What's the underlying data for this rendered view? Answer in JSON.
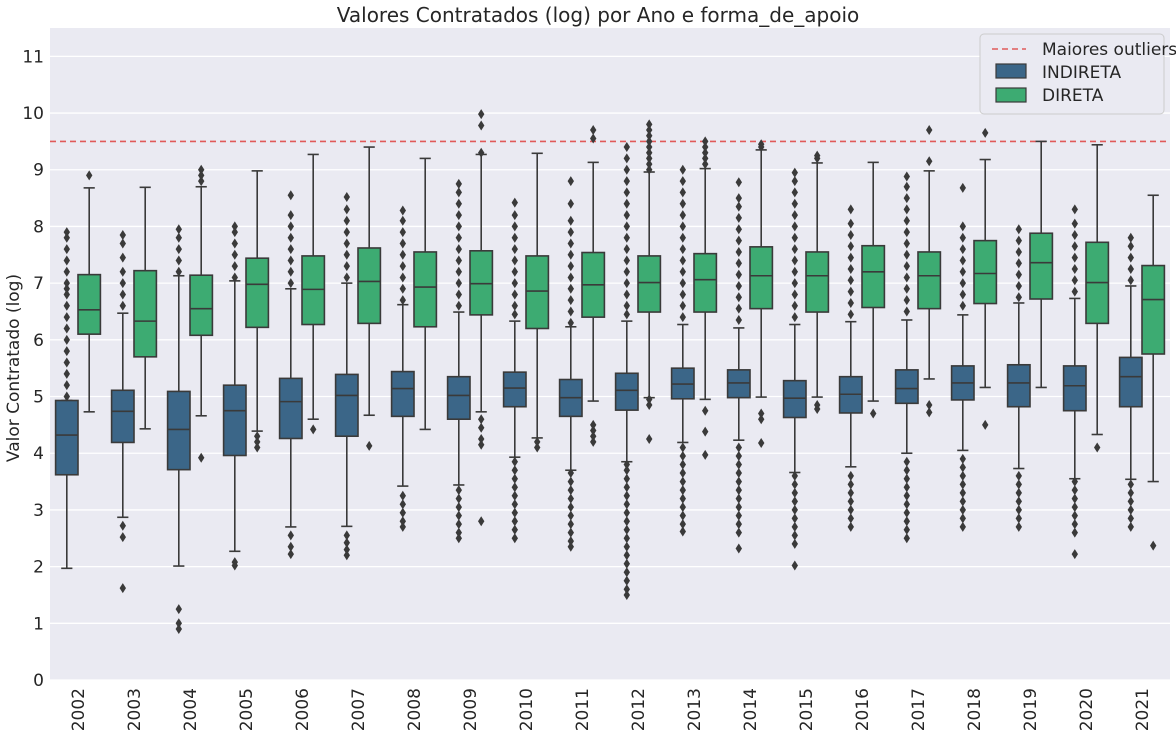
{
  "chart_data": {
    "type": "box",
    "title": "Valores Contratados (log) por Ano e forma_de_apoio",
    "xlabel": "",
    "ylabel": "Valor Contratado (log)",
    "ylim": [
      0,
      11.5
    ],
    "yticks": [
      0,
      1,
      2,
      3,
      4,
      5,
      6,
      7,
      8,
      9,
      10,
      11
    ],
    "grid": true,
    "legend_position": "top-right",
    "reference_line": {
      "label": "Maiores outliers",
      "y": 9.5,
      "color": "#e05a5a",
      "style": "dashed"
    },
    "categories": [
      "2002",
      "2003",
      "2004",
      "2005",
      "2006",
      "2007",
      "2008",
      "2009",
      "2010",
      "2011",
      "2012",
      "2013",
      "2014",
      "2015",
      "2016",
      "2017",
      "2018",
      "2019",
      "2020",
      "2021"
    ],
    "series": [
      {
        "name": "INDIRETA",
        "color": "#3b6688",
        "boxes": [
          {
            "whislo": 1.97,
            "q1": 3.62,
            "med": 4.32,
            "q3": 4.93,
            "whishi": 4.93,
            "fliers": [
              5.0,
              5.2,
              5.4,
              5.6,
              5.8,
              6.0,
              6.2,
              6.4,
              6.6,
              6.8,
              6.9,
              7.0,
              7.2,
              7.4,
              7.6,
              7.8,
              7.9
            ]
          },
          {
            "whislo": 2.87,
            "q1": 4.19,
            "med": 4.74,
            "q3": 5.11,
            "whishi": 6.47,
            "fliers": [
              1.62,
              2.52,
              2.72,
              6.6,
              6.8,
              7.0,
              7.2,
              7.45,
              7.7,
              7.85
            ]
          },
          {
            "whislo": 2.01,
            "q1": 3.71,
            "med": 4.42,
            "q3": 5.09,
            "whishi": 7.13,
            "fliers": [
              0.9,
              1.0,
              1.25,
              7.2,
              7.4,
              7.6,
              7.8,
              7.95
            ]
          },
          {
            "whislo": 2.27,
            "q1": 3.96,
            "med": 4.75,
            "q3": 5.2,
            "whishi": 7.04,
            "fliers": [
              2.02,
              2.08,
              7.1,
              7.3,
              7.5,
              7.7,
              7.9,
              8.0
            ]
          },
          {
            "whislo": 2.7,
            "q1": 4.26,
            "med": 4.91,
            "q3": 5.32,
            "whishi": 6.9,
            "fliers": [
              2.22,
              2.35,
              2.55,
              7.0,
              7.2,
              7.4,
              7.6,
              7.8,
              8.0,
              8.2,
              8.55
            ]
          },
          {
            "whislo": 2.71,
            "q1": 4.3,
            "med": 5.02,
            "q3": 5.39,
            "whishi": 7.0,
            "fliers": [
              2.2,
              2.3,
              2.42,
              2.55,
              7.1,
              7.3,
              7.5,
              7.7,
              7.9,
              8.1,
              8.3,
              8.52
            ]
          },
          {
            "whislo": 3.42,
            "q1": 4.65,
            "med": 5.14,
            "q3": 5.44,
            "whishi": 6.62,
            "fliers": [
              2.7,
              2.8,
              2.95,
              3.1,
              3.25,
              6.7,
              6.9,
              7.1,
              7.3,
              7.5,
              7.7,
              7.9,
              8.1,
              8.28
            ]
          },
          {
            "whislo": 3.44,
            "q1": 4.6,
            "med": 5.02,
            "q3": 5.35,
            "whishi": 6.49,
            "fliers": [
              2.5,
              2.6,
              2.75,
              2.9,
              3.05,
              3.2,
              3.35,
              6.6,
              6.8,
              7.0,
              7.2,
              7.4,
              7.6,
              7.8,
              8.0,
              8.2,
              8.4,
              8.6,
              8.75
            ]
          },
          {
            "whislo": 3.93,
            "q1": 4.82,
            "med": 5.15,
            "q3": 5.43,
            "whishi": 6.33,
            "fliers": [
              2.5,
              2.65,
              2.8,
              2.95,
              3.1,
              3.25,
              3.4,
              3.55,
              3.7,
              3.85,
              6.45,
              6.6,
              6.8,
              7.0,
              7.2,
              7.4,
              7.6,
              7.8,
              8.0,
              8.2,
              8.42
            ]
          },
          {
            "whislo": 3.7,
            "q1": 4.65,
            "med": 4.98,
            "q3": 5.3,
            "whishi": 6.23,
            "fliers": [
              2.35,
              2.45,
              2.6,
              2.75,
              2.9,
              3.05,
              3.2,
              3.35,
              3.5,
              3.65,
              6.3,
              6.5,
              6.7,
              6.9,
              7.1,
              7.3,
              7.5,
              7.7,
              7.9,
              8.1,
              8.4,
              8.8
            ]
          },
          {
            "whislo": 3.85,
            "q1": 4.76,
            "med": 5.11,
            "q3": 5.41,
            "whishi": 6.33,
            "fliers": [
              1.5,
              1.6,
              1.75,
              1.9,
              2.05,
              2.2,
              2.35,
              2.5,
              2.65,
              2.8,
              2.95,
              3.1,
              3.25,
              3.4,
              3.55,
              3.7,
              3.8,
              6.45,
              6.6,
              6.8,
              7.0,
              7.2,
              7.4,
              7.6,
              7.8,
              8.0,
              8.2,
              8.4,
              8.6,
              8.8,
              9.0,
              9.2,
              9.4
            ]
          },
          {
            "whislo": 4.19,
            "q1": 4.96,
            "med": 5.22,
            "q3": 5.5,
            "whishi": 6.27,
            "fliers": [
              2.62,
              2.75,
              2.9,
              3.05,
              3.2,
              3.35,
              3.5,
              3.65,
              3.8,
              3.95,
              4.1,
              6.4,
              6.6,
              6.8,
              7.0,
              7.2,
              7.4,
              7.6,
              7.8,
              8.0,
              8.2,
              8.4,
              8.6,
              8.8,
              9.0
            ]
          },
          {
            "whislo": 4.23,
            "q1": 4.98,
            "med": 5.24,
            "q3": 5.47,
            "whishi": 6.21,
            "fliers": [
              2.32,
              2.6,
              2.75,
              2.9,
              3.05,
              3.2,
              3.35,
              3.5,
              3.65,
              3.8,
              3.95,
              4.1,
              6.35,
              6.55,
              6.75,
              6.95,
              7.15,
              7.35,
              7.55,
              7.75,
              7.95,
              8.15,
              8.35,
              8.5,
              8.78
            ]
          },
          {
            "whislo": 3.66,
            "q1": 4.63,
            "med": 4.97,
            "q3": 5.28,
            "whishi": 6.27,
            "fliers": [
              2.02,
              2.4,
              2.55,
              2.7,
              2.85,
              3.0,
              3.15,
              3.3,
              3.45,
              3.6,
              6.4,
              6.6,
              6.8,
              7.0,
              7.2,
              7.4,
              7.6,
              7.8,
              8.0,
              8.2,
              8.4,
              8.6,
              8.8,
              8.95
            ]
          },
          {
            "whislo": 3.76,
            "q1": 4.71,
            "med": 5.04,
            "q3": 5.35,
            "whishi": 6.32,
            "fliers": [
              2.7,
              2.85,
              3.0,
              3.15,
              3.3,
              3.45,
              3.6,
              6.45,
              6.65,
              6.85,
              7.05,
              7.25,
              7.45,
              7.65,
              7.85,
              8.05,
              8.3
            ]
          },
          {
            "whislo": 4.0,
            "q1": 4.88,
            "med": 5.14,
            "q3": 5.47,
            "whishi": 6.35,
            "fliers": [
              2.5,
              2.65,
              2.8,
              2.95,
              3.1,
              3.25,
              3.4,
              3.55,
              3.7,
              3.85,
              6.5,
              6.7,
              6.9,
              7.1,
              7.3,
              7.5,
              7.7,
              7.9,
              8.1,
              8.3,
              8.5,
              8.7,
              8.88
            ]
          },
          {
            "whislo": 4.05,
            "q1": 4.94,
            "med": 5.24,
            "q3": 5.54,
            "whishi": 6.44,
            "fliers": [
              2.7,
              2.85,
              3.0,
              3.15,
              3.3,
              3.45,
              3.6,
              3.75,
              3.9,
              6.6,
              6.8,
              7.0,
              7.2,
              7.4,
              7.6,
              7.8,
              8.0,
              8.68
            ]
          },
          {
            "whislo": 3.73,
            "q1": 4.82,
            "med": 5.24,
            "q3": 5.56,
            "whishi": 6.65,
            "fliers": [
              2.7,
              2.85,
              3.0,
              3.15,
              3.3,
              3.45,
              3.6,
              6.75,
              6.95,
              7.15,
              7.35,
              7.55,
              7.75,
              7.95
            ]
          },
          {
            "whislo": 3.55,
            "q1": 4.75,
            "med": 5.19,
            "q3": 5.54,
            "whishi": 6.73,
            "fliers": [
              2.22,
              2.6,
              2.75,
              2.9,
              3.05,
              3.2,
              3.35,
              3.5,
              6.85,
              7.05,
              7.25,
              7.45,
              7.65,
              7.85,
              8.05,
              8.3
            ]
          },
          {
            "whislo": 3.54,
            "q1": 4.82,
            "med": 5.35,
            "q3": 5.69,
            "whishi": 6.95,
            "fliers": [
              2.7,
              2.85,
              3.0,
              3.15,
              3.3,
              3.45,
              7.05,
              7.25,
              7.45,
              7.65,
              7.8
            ]
          }
        ]
      },
      {
        "name": "DIRETA",
        "color": "#3dab72",
        "boxes": [
          {
            "whislo": 4.73,
            "q1": 6.1,
            "med": 6.53,
            "q3": 7.15,
            "whishi": 8.68,
            "fliers": [
              8.9
            ]
          },
          {
            "whislo": 4.43,
            "q1": 5.7,
            "med": 6.33,
            "q3": 7.22,
            "whishi": 8.69,
            "fliers": []
          },
          {
            "whislo": 4.66,
            "q1": 6.08,
            "med": 6.55,
            "q3": 7.14,
            "whishi": 8.7,
            "fliers": [
              3.92,
              8.8,
              8.9,
              9.0
            ]
          },
          {
            "whislo": 4.39,
            "q1": 6.22,
            "med": 6.98,
            "q3": 7.44,
            "whishi": 8.98,
            "fliers": [
              4.1,
              4.2,
              4.3
            ]
          },
          {
            "whislo": 4.6,
            "q1": 6.27,
            "med": 6.89,
            "q3": 7.48,
            "whishi": 9.27,
            "fliers": [
              4.42
            ]
          },
          {
            "whislo": 4.67,
            "q1": 6.29,
            "med": 7.03,
            "q3": 7.62,
            "whishi": 9.4,
            "fliers": [
              4.13
            ]
          },
          {
            "whislo": 4.42,
            "q1": 6.23,
            "med": 6.93,
            "q3": 7.55,
            "whishi": 9.2,
            "fliers": []
          },
          {
            "whislo": 4.73,
            "q1": 6.44,
            "med": 6.99,
            "q3": 7.57,
            "whishi": 9.27,
            "fliers": [
              2.8,
              4.15,
              4.25,
              4.45,
              4.6,
              9.3,
              9.78,
              9.98
            ]
          },
          {
            "whislo": 4.27,
            "q1": 6.2,
            "med": 6.86,
            "q3": 7.48,
            "whishi": 9.29,
            "fliers": [
              4.1,
              4.2
            ]
          },
          {
            "whislo": 4.92,
            "q1": 6.4,
            "med": 6.97,
            "q3": 7.54,
            "whishi": 9.13,
            "fliers": [
              4.2,
              4.3,
              4.4,
              4.5,
              9.55,
              9.7
            ]
          },
          {
            "whislo": 4.98,
            "q1": 6.49,
            "med": 7.01,
            "q3": 7.48,
            "whishi": 8.96,
            "fliers": [
              4.25,
              4.85,
              4.95,
              9.0,
              9.1,
              9.2,
              9.3,
              9.4,
              9.5,
              9.6,
              9.7,
              9.8
            ]
          },
          {
            "whislo": 4.95,
            "q1": 6.49,
            "med": 7.06,
            "q3": 7.52,
            "whishi": 9.02,
            "fliers": [
              3.97,
              4.38,
              4.75,
              9.1,
              9.2,
              9.3,
              9.4,
              9.5
            ]
          },
          {
            "whislo": 4.99,
            "q1": 6.55,
            "med": 7.13,
            "q3": 7.64,
            "whishi": 9.35,
            "fliers": [
              4.18,
              4.6,
              4.7,
              9.4,
              9.45
            ]
          },
          {
            "whislo": 4.99,
            "q1": 6.49,
            "med": 7.13,
            "q3": 7.55,
            "whishi": 9.12,
            "fliers": [
              4.78,
              4.85,
              9.2,
              9.25
            ]
          },
          {
            "whislo": 4.92,
            "q1": 6.57,
            "med": 7.2,
            "q3": 7.66,
            "whishi": 9.13,
            "fliers": [
              4.7
            ]
          },
          {
            "whislo": 5.31,
            "q1": 6.55,
            "med": 7.13,
            "q3": 7.55,
            "whishi": 8.98,
            "fliers": [
              4.72,
              4.85,
              9.15,
              9.7
            ]
          },
          {
            "whislo": 5.16,
            "q1": 6.64,
            "med": 7.17,
            "q3": 7.75,
            "whishi": 9.18,
            "fliers": [
              4.5,
              9.65
            ]
          },
          {
            "whislo": 5.16,
            "q1": 6.72,
            "med": 7.36,
            "q3": 7.88,
            "whishi": 9.5,
            "fliers": []
          },
          {
            "whislo": 4.33,
            "q1": 6.29,
            "med": 7.01,
            "q3": 7.72,
            "whishi": 9.44,
            "fliers": [
              4.1
            ]
          },
          {
            "whislo": 3.5,
            "q1": 5.75,
            "med": 6.71,
            "q3": 7.31,
            "whishi": 8.55,
            "fliers": [
              2.37
            ]
          }
        ]
      }
    ]
  }
}
